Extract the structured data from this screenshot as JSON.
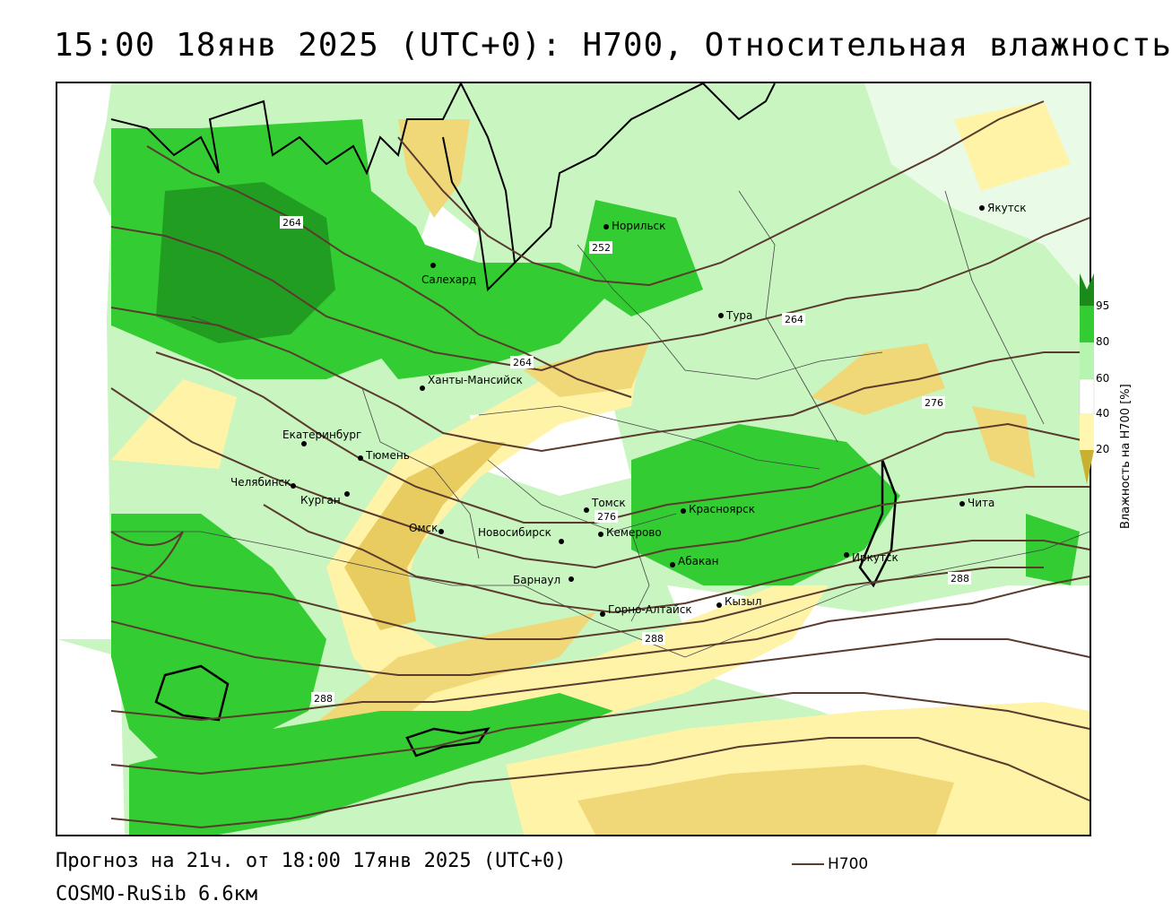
{
  "header": {
    "title": "15:00 18янв 2025 (UTC+0): H700, Относительная влажность"
  },
  "footer": {
    "forecast_line": "Прогноз на 21ч. от 18:00 17янв 2025 (UTC+0)",
    "model_line": "COSMO-RuSib 6.6км"
  },
  "legend": {
    "title": "Влажность на Н700 [%]",
    "ticks": [
      "95",
      "80",
      "60",
      "40",
      "20"
    ],
    "colors": [
      "#1a8a1a",
      "#33cc33",
      "#b6f5b0",
      "#ffffff",
      "#fff6b0",
      "#f0d878",
      "#c8b030"
    ],
    "line_label": "H700",
    "line_color": "#5a3b2e"
  },
  "map": {
    "cities": [
      {
        "name": "Якутск"
      },
      {
        "name": "Норильск"
      },
      {
        "name": "Салехард"
      },
      {
        "name": "Тура"
      },
      {
        "name": "Ханты-Мансийск"
      },
      {
        "name": "Екатеринбург"
      },
      {
        "name": "Тюмень"
      },
      {
        "name": "Челябинск"
      },
      {
        "name": "Курган"
      },
      {
        "name": "Омск"
      },
      {
        "name": "Новосибирск"
      },
      {
        "name": "Томск"
      },
      {
        "name": "Кемерово"
      },
      {
        "name": "Красноярск"
      },
      {
        "name": "Барнаул"
      },
      {
        "name": "Абакан"
      },
      {
        "name": "Иркутск"
      },
      {
        "name": "Чита"
      },
      {
        "name": "Кызыл"
      },
      {
        "name": "Горно-Алтайск"
      }
    ],
    "contour_labels": [
      "264",
      "252",
      "264",
      "264",
      "276",
      "276",
      "288",
      "288",
      "288"
    ]
  }
}
